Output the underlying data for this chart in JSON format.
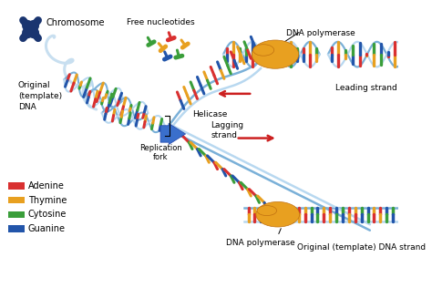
{
  "background_color": "#ffffff",
  "labels": {
    "chromosome": "Chromosome",
    "original_dna": "Original\n(template)\nDNA",
    "replication_fork": "Replication\nfork",
    "free_nucleotides": "Free nucleotides",
    "dna_polymerase_top": "DNA polymerase",
    "dna_polymerase_bot": "DNA polymerase",
    "helicase": "Helicase",
    "leading_strand": "Leading strand",
    "lagging_strand": "Lagging\nstrand",
    "original_template": "Original (template) DNA strand",
    "adenine": "Adenine",
    "thymine": "Thymine",
    "cytosine": "Cytosine",
    "guanine": "Guanine"
  },
  "colors": {
    "adenine": "#d93030",
    "thymine": "#e8a020",
    "cytosine": "#3a9e3a",
    "guanine": "#2255aa",
    "helicase": "#3a6fcc",
    "dna_polymerase": "#e8a020",
    "chromosome": "#2a4a8a",
    "backbone_blue": "#7ab0d8",
    "backbone_light": "#b8d8f0",
    "arrow_red": "#cc2020",
    "text": "#111111",
    "chrom_dark": "#1a3570"
  },
  "legend": [
    {
      "label": "Adenine",
      "color": "#d93030"
    },
    {
      "label": "Thymine",
      "color": "#e8a020"
    },
    {
      "label": "Cytosine",
      "color": "#3a9e3a"
    },
    {
      "label": "Guanine",
      "color": "#2255aa"
    }
  ]
}
